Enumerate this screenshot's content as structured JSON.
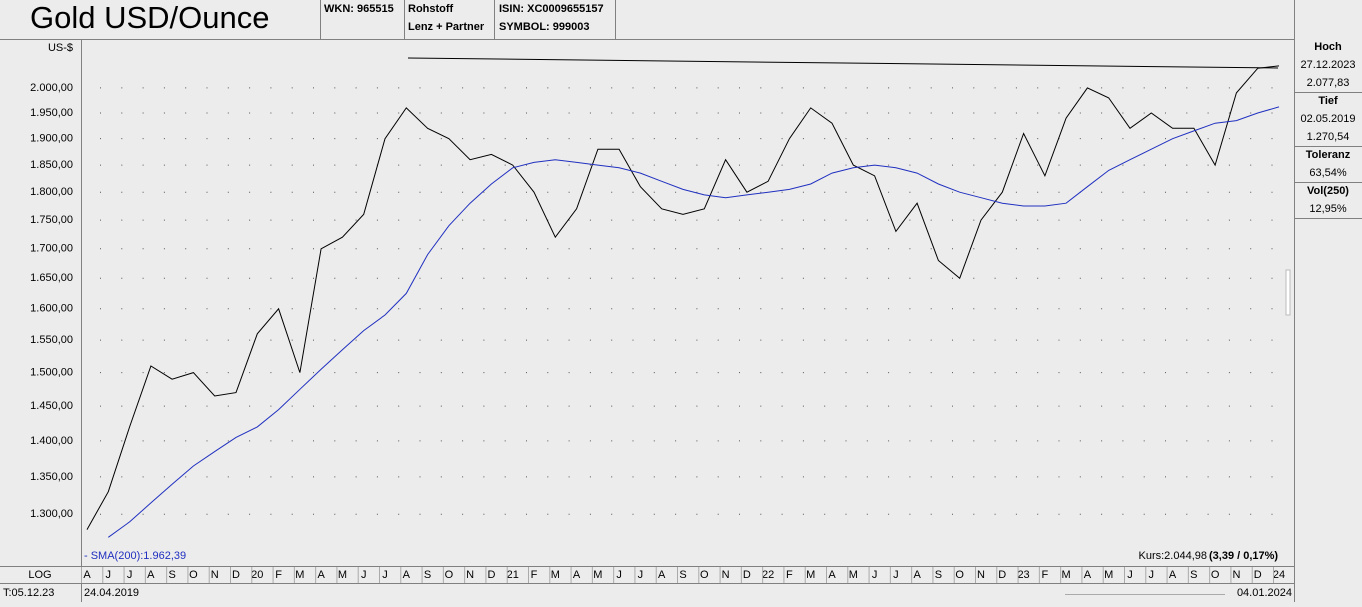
{
  "header": {
    "title": "Gold USD/Ounce",
    "wkn": "WKN: 965515",
    "category": "Rohstoff",
    "provider": "Lenz + Partner",
    "isin": "ISIN: XC0009655157",
    "symbol": "SYMBOL: 999003"
  },
  "stats": [
    {
      "label": "Hoch",
      "date": "27.12.2023",
      "value": "2.077,83"
    },
    {
      "label": "Tief",
      "date": "02.05.2019",
      "value": "1.270,54"
    },
    {
      "label": "Toleranz",
      "value": "63,54%"
    },
    {
      "label": "Vol(250)",
      "value": "12,95%"
    }
  ],
  "footer": {
    "scale": "LOG",
    "time": "T:05.12.23",
    "start_date": "24.04.2019",
    "end_date": "04.01.2024"
  },
  "chart_data": {
    "type": "line",
    "y_label": "US-$",
    "log_scale": true,
    "grid": true,
    "categories": [
      "A",
      "J",
      "J",
      "A",
      "S",
      "O",
      "N",
      "D",
      "20",
      "F",
      "M",
      "A",
      "M",
      "J",
      "J",
      "A",
      "S",
      "O",
      "N",
      "D",
      "21",
      "F",
      "M",
      "A",
      "M",
      "J",
      "J",
      "A",
      "S",
      "O",
      "N",
      "D",
      "22",
      "F",
      "M",
      "A",
      "M",
      "J",
      "J",
      "A",
      "S",
      "O",
      "N",
      "D",
      "23",
      "F",
      "M",
      "A",
      "M",
      "J",
      "J",
      "A",
      "S",
      "O",
      "N",
      "D",
      "24"
    ],
    "series": [
      {
        "name": "Kurs:2.044,98",
        "change": "(3,39 / 0,17%)",
        "color": "#000000",
        "values": [
          1280,
          1330,
          1420,
          1510,
          1490,
          1500,
          1465,
          1470,
          1560,
          1600,
          1500,
          1700,
          1720,
          1760,
          1900,
          1960,
          1920,
          1900,
          1860,
          1870,
          1850,
          1800,
          1720,
          1770,
          1880,
          1880,
          1810,
          1770,
          1760,
          1770,
          1860,
          1800,
          1820,
          1900,
          1960,
          1930,
          1850,
          1830,
          1730,
          1780,
          1680,
          1650,
          1750,
          1800,
          1910,
          1830,
          1940,
          2000,
          1980,
          1920,
          1950,
          1920,
          1920,
          1850,
          1990,
          2040,
          2045
        ]
      },
      {
        "name": "- SMA(200):1.962,39",
        "color": "#2030c0",
        "values": [
          null,
          1270,
          1290,
          1315,
          1340,
          1365,
          1385,
          1405,
          1420,
          1445,
          1475,
          1505,
          1535,
          1565,
          1590,
          1625,
          1690,
          1740,
          1780,
          1815,
          1845,
          1855,
          1860,
          1855,
          1850,
          1845,
          1835,
          1820,
          1805,
          1795,
          1790,
          1795,
          1800,
          1805,
          1815,
          1835,
          1845,
          1850,
          1845,
          1835,
          1815,
          1800,
          1790,
          1780,
          1775,
          1775,
          1780,
          1810,
          1840,
          1860,
          1880,
          1900,
          1915,
          1930,
          1935,
          1950,
          1962
        ]
      }
    ],
    "ylim": [
      1235,
      2095
    ],
    "yticks": [
      {
        "value": 1300,
        "label": "1.300,00"
      },
      {
        "value": 1350,
        "label": "1.350,00"
      },
      {
        "value": 1400,
        "label": "1.400,00"
      },
      {
        "value": 1450,
        "label": "1.450,00"
      },
      {
        "value": 1500,
        "label": "1.500,00"
      },
      {
        "value": 1550,
        "label": "1.550,00"
      },
      {
        "value": 1600,
        "label": "1.600,00"
      },
      {
        "value": 1650,
        "label": "1.650,00"
      },
      {
        "value": 1700,
        "label": "1.700,00"
      },
      {
        "value": 1750,
        "label": "1.750,00"
      },
      {
        "value": 1800,
        "label": "1.800,00"
      },
      {
        "value": 1850,
        "label": "1.850,00"
      },
      {
        "value": 1900,
        "label": "1.900,00"
      },
      {
        "value": 1950,
        "label": "1.950,00"
      },
      {
        "value": 2000,
        "label": "2.000,00"
      }
    ]
  }
}
